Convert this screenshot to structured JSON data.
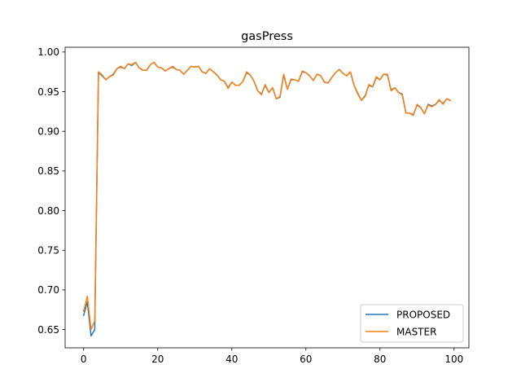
{
  "chart_data": {
    "type": "line",
    "title": "gasPress",
    "xlabel": "",
    "ylabel": "",
    "xlim": [
      -5,
      104
    ],
    "ylim": [
      0.627,
      1.006
    ],
    "xticks": [
      0,
      20,
      40,
      60,
      80,
      100
    ],
    "yticks": [
      0.65,
      0.7,
      0.75,
      0.8,
      0.85,
      0.9,
      0.95,
      1.0
    ],
    "xtick_labels": [
      "0",
      "20",
      "40",
      "60",
      "80",
      "100"
    ],
    "ytick_labels": [
      "0.65",
      "0.70",
      "0.75",
      "0.80",
      "0.85",
      "0.90",
      "0.95",
      "1.00"
    ],
    "grid": false,
    "legend_position": "lower-right",
    "x": [
      0,
      1,
      2,
      3,
      4,
      5,
      6,
      7,
      8,
      9,
      10,
      11,
      12,
      13,
      14,
      15,
      16,
      17,
      18,
      19,
      20,
      21,
      22,
      23,
      24,
      25,
      26,
      27,
      28,
      29,
      30,
      31,
      32,
      33,
      34,
      35,
      36,
      37,
      38,
      39,
      40,
      41,
      42,
      43,
      44,
      45,
      46,
      47,
      48,
      49,
      50,
      51,
      52,
      53,
      54,
      55,
      56,
      57,
      58,
      59,
      60,
      61,
      62,
      63,
      64,
      65,
      66,
      67,
      68,
      69,
      70,
      71,
      72,
      73,
      74,
      75,
      76,
      77,
      78,
      79,
      80,
      81,
      82,
      83,
      84,
      85,
      86,
      87,
      88,
      89,
      90,
      91,
      92,
      93,
      94,
      95,
      96,
      97,
      98,
      99
    ],
    "series": [
      {
        "name": "PROPOSED",
        "color": "#1f77b4",
        "values": [
          0.668,
          0.685,
          0.642,
          0.65,
          0.974,
          0.97,
          0.965,
          0.969,
          0.972,
          0.979,
          0.981,
          0.979,
          0.985,
          0.983,
          0.987,
          0.98,
          0.977,
          0.977,
          0.984,
          0.987,
          0.981,
          0.98,
          0.976,
          0.979,
          0.981,
          0.978,
          0.977,
          0.972,
          0.977,
          0.982,
          0.981,
          0.982,
          0.975,
          0.973,
          0.979,
          0.975,
          0.971,
          0.965,
          0.963,
          0.955,
          0.962,
          0.958,
          0.958,
          0.963,
          0.974,
          0.971,
          0.963,
          0.951,
          0.947,
          0.958,
          0.949,
          0.955,
          0.941,
          0.943,
          0.971,
          0.953,
          0.965,
          0.965,
          0.963,
          0.975,
          0.974,
          0.97,
          0.964,
          0.972,
          0.97,
          0.962,
          0.961,
          0.968,
          0.974,
          0.978,
          0.973,
          0.97,
          0.975,
          0.958,
          0.948,
          0.939,
          0.945,
          0.958,
          0.956,
          0.968,
          0.965,
          0.972,
          0.971,
          0.952,
          0.955,
          0.949,
          0.947,
          0.923,
          0.923,
          0.921,
          0.933,
          0.93,
          0.922,
          0.934,
          0.932,
          0.934,
          0.939,
          0.935,
          0.941,
          0.939
        ]
      },
      {
        "name": "MASTER",
        "color": "#ff7f0e",
        "values": [
          0.673,
          0.692,
          0.65,
          0.661,
          0.975,
          0.971,
          0.965,
          0.969,
          0.971,
          0.979,
          0.982,
          0.979,
          0.985,
          0.984,
          0.987,
          0.98,
          0.977,
          0.977,
          0.984,
          0.987,
          0.981,
          0.98,
          0.976,
          0.979,
          0.982,
          0.978,
          0.977,
          0.972,
          0.977,
          0.982,
          0.981,
          0.982,
          0.975,
          0.973,
          0.979,
          0.975,
          0.971,
          0.965,
          0.963,
          0.954,
          0.962,
          0.958,
          0.958,
          0.963,
          0.975,
          0.971,
          0.963,
          0.951,
          0.946,
          0.959,
          0.949,
          0.955,
          0.941,
          0.944,
          0.972,
          0.953,
          0.966,
          0.965,
          0.963,
          0.976,
          0.974,
          0.97,
          0.964,
          0.972,
          0.97,
          0.962,
          0.961,
          0.968,
          0.974,
          0.978,
          0.973,
          0.97,
          0.975,
          0.958,
          0.947,
          0.939,
          0.944,
          0.959,
          0.956,
          0.969,
          0.965,
          0.972,
          0.972,
          0.951,
          0.955,
          0.949,
          0.946,
          0.923,
          0.923,
          0.92,
          0.934,
          0.93,
          0.922,
          0.933,
          0.931,
          0.934,
          0.94,
          0.934,
          0.941,
          0.939
        ]
      }
    ]
  }
}
